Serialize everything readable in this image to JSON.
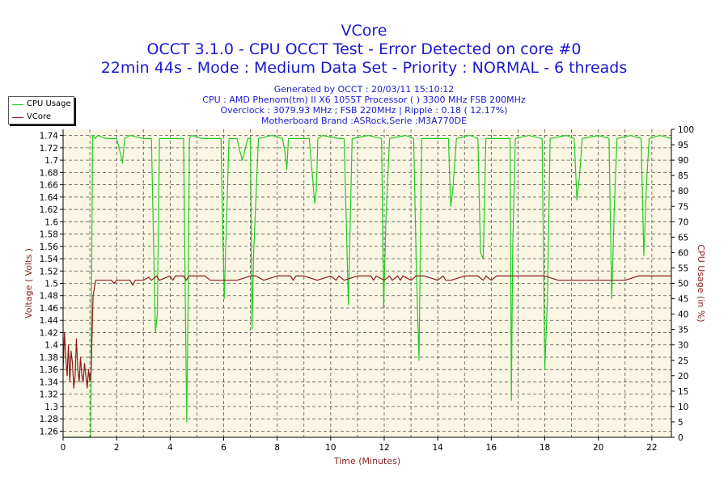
{
  "chart_data": {
    "type": "line",
    "title": "VCore",
    "subtitle_lines": [
      "OCCT 3.1.0 - CPU OCCT Test - Error Detected on core #0",
      "22min 44s - Mode : Medium Data Set - Priority : NORMAL - 6 threads"
    ],
    "info_lines": [
      "Generated by OCCT : 20/03/11 15:10:12",
      "CPU : AMD Phenom(tm) II X6 1055T Processor (  ) 3300 MHz FSB 200MHz",
      "Overclock : 3079.93 MHz ; FSB 220MHz | Ripple : 0.18 ( 12.17%)",
      "Motherboard Brand :ASRock,Serie :M3A770DE"
    ],
    "xlabel": "Time (Minutes)",
    "ylabel_left": "Voltage ( Volts )",
    "ylabel_right": "CPU Usage (in %)",
    "xlim": [
      0,
      22.73
    ],
    "ylim_left": [
      1.25,
      1.75
    ],
    "ylim_right": [
      0,
      100
    ],
    "x_ticks": [
      "0",
      "2",
      "4",
      "6",
      "8",
      "10",
      "12",
      "14",
      "16",
      "18",
      "20",
      "22"
    ],
    "y_left_ticks": [
      "1.26",
      "1.28",
      "1.3",
      "1.32",
      "1.34",
      "1.36",
      "1.38",
      "1.4",
      "1.42",
      "1.44",
      "1.46",
      "1.48",
      "1.5",
      "1.52",
      "1.54",
      "1.56",
      "1.58",
      "1.6",
      "1.62",
      "1.64",
      "1.66",
      "1.68",
      "1.7",
      "1.72",
      "1.74"
    ],
    "y_right_ticks": [
      "0",
      "5",
      "10",
      "15",
      "20",
      "25",
      "30",
      "35",
      "40",
      "45",
      "50",
      "55",
      "60",
      "65",
      "70",
      "75",
      "80",
      "85",
      "90",
      "95",
      "100"
    ],
    "grid": true,
    "legend_position": "top-left outside",
    "colors": {
      "cpu_usage": "#22cc22",
      "vcore": "#8b1a1a",
      "plot_bg": "#fbf6e4",
      "title": "#1a1ad0",
      "right_axis": "#2e9a2e",
      "axis_label": "#8b2222"
    },
    "series": [
      {
        "name": "CPU Usage",
        "axis": "right",
        "x": [
          0,
          1.0,
          1.03,
          1.1,
          1.2,
          1.3,
          1.6,
          2.0,
          2.15,
          2.22,
          2.3,
          2.5,
          3.0,
          3.3,
          3.45,
          3.52,
          3.6,
          4.0,
          4.5,
          4.62,
          4.66,
          4.72,
          4.8,
          5.2,
          5.7,
          5.9,
          5.96,
          6.02,
          6.2,
          6.5,
          6.6,
          6.7,
          6.9,
          7.0,
          7.06,
          7.12,
          7.3,
          7.8,
          8.2,
          8.3,
          8.36,
          8.42,
          8.6,
          9.2,
          9.4,
          9.46,
          9.52,
          9.7,
          10.3,
          10.5,
          10.58,
          10.66,
          10.8,
          11.4,
          11.9,
          11.98,
          12.06,
          12.2,
          12.8,
          13.1,
          13.2,
          13.3,
          13.4,
          14.0,
          14.4,
          14.48,
          14.56,
          14.7,
          15.2,
          15.5,
          15.6,
          15.7,
          15.8,
          16.2,
          16.7,
          16.75,
          16.8,
          16.9,
          17.4,
          17.9,
          18.0,
          18.1,
          18.2,
          18.8,
          19.1,
          19.2,
          19.3,
          19.4,
          20.0,
          20.4,
          20.5,
          20.6,
          20.7,
          21.2,
          21.6,
          21.7,
          21.8,
          21.9,
          22.3,
          22.73
        ],
        "values": [
          0,
          0,
          0,
          98,
          97,
          98,
          97,
          97,
          92,
          89,
          97,
          98,
          97,
          97,
          34,
          40,
          97,
          97,
          97,
          5,
          35,
          97,
          98,
          97,
          97,
          97,
          70,
          45,
          97,
          97,
          93,
          90,
          97,
          97,
          35,
          60,
          97,
          98,
          97,
          92,
          87,
          97,
          97,
          97,
          76,
          80,
          97,
          98,
          97,
          97,
          71,
          43,
          97,
          98,
          97,
          42,
          70,
          97,
          98,
          97,
          55,
          25,
          97,
          97,
          97,
          75,
          80,
          97,
          98,
          97,
          60,
          58,
          97,
          97,
          97,
          12,
          61,
          97,
          98,
          97,
          22,
          45,
          97,
          98,
          97,
          77,
          85,
          97,
          98,
          97,
          45,
          75,
          97,
          98,
          97,
          59,
          82,
          97,
          98,
          97
        ]
      },
      {
        "name": "VCore",
        "axis": "left",
        "x": [
          0,
          0.05,
          0.1,
          0.15,
          0.2,
          0.25,
          0.3,
          0.35,
          0.4,
          0.45,
          0.5,
          0.55,
          0.6,
          0.65,
          0.7,
          0.75,
          0.8,
          0.85,
          0.9,
          0.95,
          1.0,
          1.05,
          1.12,
          1.22,
          1.35,
          1.8,
          1.9,
          2.0,
          2.5,
          2.6,
          2.7,
          3.0,
          3.2,
          3.3,
          3.5,
          3.6,
          4.0,
          4.1,
          4.2,
          4.5,
          4.6,
          4.7,
          5.0,
          5.3,
          5.5,
          6.0,
          6.5,
          7.0,
          7.1,
          7.2,
          7.5,
          8.0,
          8.5,
          8.6,
          8.7,
          9.0,
          9.5,
          10.0,
          10.2,
          10.3,
          10.5,
          11.0,
          11.5,
          11.6,
          11.7,
          12.0,
          12.2,
          12.3,
          12.5,
          12.6,
          12.7,
          13.0,
          13.2,
          13.5,
          14.0,
          14.2,
          14.3,
          14.5,
          15.0,
          15.5,
          15.7,
          15.8,
          16.0,
          16.2,
          16.5,
          17.0,
          17.5,
          18.0,
          18.5,
          19.0,
          19.5,
          20.0,
          20.5,
          21.0,
          21.5,
          22.0,
          22.73
        ],
        "values": [
          1.36,
          1.42,
          1.38,
          1.35,
          1.4,
          1.34,
          1.39,
          1.37,
          1.33,
          1.35,
          1.41,
          1.36,
          1.34,
          1.38,
          1.35,
          1.34,
          1.37,
          1.35,
          1.33,
          1.36,
          1.34,
          1.36,
          1.48,
          1.505,
          1.505,
          1.505,
          1.5,
          1.505,
          1.505,
          1.497,
          1.505,
          1.505,
          1.51,
          1.505,
          1.512,
          1.505,
          1.512,
          1.505,
          1.512,
          1.512,
          1.505,
          1.512,
          1.512,
          1.512,
          1.505,
          1.505,
          1.505,
          1.512,
          1.512,
          1.512,
          1.505,
          1.512,
          1.512,
          1.505,
          1.512,
          1.512,
          1.505,
          1.512,
          1.505,
          1.512,
          1.505,
          1.512,
          1.512,
          1.505,
          1.512,
          1.505,
          1.512,
          1.505,
          1.512,
          1.505,
          1.512,
          1.505,
          1.512,
          1.512,
          1.505,
          1.512,
          1.505,
          1.505,
          1.512,
          1.512,
          1.505,
          1.512,
          1.505,
          1.512,
          1.512,
          1.512,
          1.512,
          1.512,
          1.505,
          1.505,
          1.505,
          1.505,
          1.505,
          1.505,
          1.512,
          1.512,
          1.512
        ]
      }
    ]
  }
}
